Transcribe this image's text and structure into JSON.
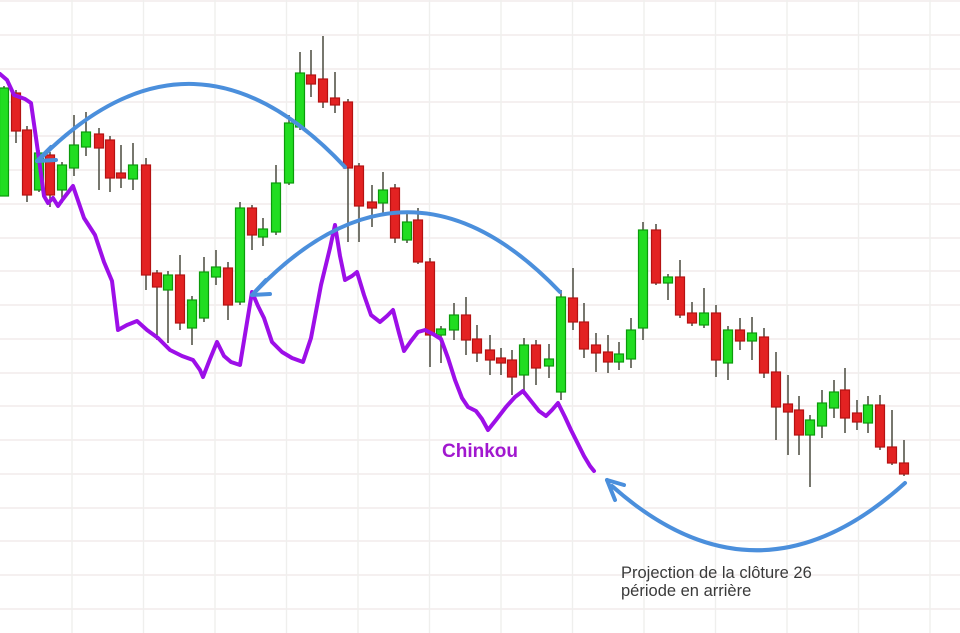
{
  "palette": {
    "background": "#ffffff",
    "grid_h": "#f2eceb",
    "grid_v": "#efefed",
    "up_fill": "#21dd21",
    "up_stroke": "#0b9b0b",
    "down_fill": "#e32222",
    "down_stroke": "#b51212",
    "wick": "#55554a",
    "chinkou_line": "#9d0fe8",
    "chinkou_text": "#a118cf",
    "arrow_blue": "#4b8fdc",
    "annotation_text": "#3a3a3a"
  },
  "labels": {
    "chinkou": "Chinkou",
    "projection_line1": "Projection de la clôture 26",
    "projection_line2": "période en arrière"
  },
  "chart_data": {
    "type": "candlestick",
    "title": "",
    "xlabel": "",
    "ylabel": "",
    "has_axis_labels": false,
    "note": "cropped candlestick chart with Ichimoku Chinkou span; values are screen-pixel estimates (down = lower price), no numeric axis ticks visible",
    "grid": {
      "vertical_x": [
        72,
        143.5,
        215,
        286.5,
        358,
        429.5,
        501,
        572.5,
        644,
        715.5,
        787,
        858.5,
        930
      ],
      "horizontal_y": [
        1,
        35,
        69,
        102,
        136,
        170,
        204,
        238,
        271,
        305,
        339,
        373,
        406,
        440,
        474,
        508,
        541,
        575,
        609
      ]
    },
    "candle_columns": [
      "x_center",
      "wick_top",
      "body_top",
      "body_bottom",
      "wick_bottom",
      "direction(u=up,d=down)"
    ],
    "candles": [
      [
        4,
        86,
        88,
        196,
        196,
        "u"
      ],
      [
        16,
        90,
        93,
        131,
        143,
        "d"
      ],
      [
        27,
        126,
        130,
        195,
        202,
        "d"
      ],
      [
        39,
        150,
        153,
        190,
        192,
        "u"
      ],
      [
        50,
        152,
        155,
        195,
        207,
        "d"
      ],
      [
        62,
        162,
        165,
        190,
        203,
        "u"
      ],
      [
        74,
        115,
        145,
        168,
        176,
        "u"
      ],
      [
        86,
        112,
        132,
        147,
        156,
        "u"
      ],
      [
        99,
        128,
        134,
        148,
        190,
        "d"
      ],
      [
        110,
        136,
        140,
        178,
        192,
        "d"
      ],
      [
        121,
        145,
        173,
        178,
        188,
        "d"
      ],
      [
        133,
        143,
        165,
        179,
        190,
        "u"
      ],
      [
        146,
        158,
        165,
        275,
        290,
        "d"
      ],
      [
        157,
        270,
        273,
        287,
        340,
        "d"
      ],
      [
        168,
        271,
        275,
        290,
        343,
        "u"
      ],
      [
        180,
        255,
        275,
        323,
        330,
        "d"
      ],
      [
        192,
        296,
        300,
        328,
        345,
        "u"
      ],
      [
        204,
        257,
        272,
        318,
        322,
        "u"
      ],
      [
        216,
        250,
        267,
        277,
        285,
        "u"
      ],
      [
        228,
        262,
        268,
        305,
        320,
        "d"
      ],
      [
        240,
        202,
        208,
        302,
        305,
        "u"
      ],
      [
        252,
        205,
        208,
        235,
        250,
        "d"
      ],
      [
        263,
        218,
        229,
        237,
        246,
        "u"
      ],
      [
        276,
        165,
        183,
        232,
        235,
        "u"
      ],
      [
        289,
        115,
        123,
        183,
        185,
        "u"
      ],
      [
        300,
        52,
        73,
        127,
        130,
        "u"
      ],
      [
        311,
        50,
        75,
        84,
        97,
        "d"
      ],
      [
        323,
        36,
        79,
        102,
        108,
        "d"
      ],
      [
        335,
        72,
        98,
        105,
        113,
        "d"
      ],
      [
        348,
        99,
        102,
        168,
        242,
        "d"
      ],
      [
        359,
        163,
        166,
        206,
        242,
        "d"
      ],
      [
        372,
        185,
        202,
        208,
        227,
        "d"
      ],
      [
        383,
        172,
        190,
        203,
        215,
        "u"
      ],
      [
        395,
        184,
        188,
        238,
        243,
        "d"
      ],
      [
        407,
        213,
        222,
        240,
        243,
        "u"
      ],
      [
        418,
        208,
        220,
        262,
        264,
        "d"
      ],
      [
        430,
        258,
        262,
        335,
        367,
        "d"
      ],
      [
        441,
        326,
        329,
        335,
        363,
        "u"
      ],
      [
        454,
        303,
        315,
        330,
        340,
        "u"
      ],
      [
        466,
        297,
        315,
        340,
        355,
        "d"
      ],
      [
        477,
        325,
        339,
        353,
        362,
        "d"
      ],
      [
        490,
        335,
        350,
        360,
        375,
        "d"
      ],
      [
        501,
        348,
        358,
        363,
        375,
        "d"
      ],
      [
        512,
        350,
        360,
        377,
        395,
        "d"
      ],
      [
        524,
        338,
        345,
        375,
        395,
        "u"
      ],
      [
        536,
        340,
        345,
        368,
        385,
        "d"
      ],
      [
        549,
        344,
        359,
        366,
        378,
        "u"
      ],
      [
        561,
        290,
        297,
        392,
        400,
        "u"
      ],
      [
        573,
        268,
        298,
        322,
        330,
        "d"
      ],
      [
        584,
        303,
        322,
        349,
        358,
        "d"
      ],
      [
        596,
        333,
        345,
        353,
        372,
        "d"
      ],
      [
        608,
        335,
        352,
        362,
        373,
        "d"
      ],
      [
        619,
        342,
        354,
        362,
        370,
        "u"
      ],
      [
        631,
        318,
        330,
        359,
        368,
        "u"
      ],
      [
        643,
        222,
        230,
        328,
        340,
        "u"
      ],
      [
        656,
        224,
        230,
        283,
        285,
        "d"
      ],
      [
        668,
        274,
        277,
        283,
        300,
        "u"
      ],
      [
        680,
        260,
        277,
        315,
        318,
        "d"
      ],
      [
        692,
        302,
        313,
        323,
        326,
        "d"
      ],
      [
        704,
        288,
        313,
        325,
        328,
        "u"
      ],
      [
        716,
        305,
        313,
        360,
        377,
        "d"
      ],
      [
        728,
        326,
        330,
        363,
        380,
        "u"
      ],
      [
        740,
        318,
        330,
        341,
        350,
        "d"
      ],
      [
        752,
        317,
        333,
        341,
        360,
        "u"
      ],
      [
        764,
        328,
        337,
        373,
        378,
        "d"
      ],
      [
        776,
        352,
        372,
        407,
        440,
        "d"
      ],
      [
        788,
        375,
        404,
        412,
        455,
        "d"
      ],
      [
        799,
        396,
        410,
        435,
        455,
        "d"
      ],
      [
        810,
        415,
        420,
        435,
        487,
        "u"
      ],
      [
        822,
        390,
        403,
        426,
        438,
        "u"
      ],
      [
        834,
        380,
        392,
        408,
        418,
        "u"
      ],
      [
        845,
        368,
        390,
        418,
        433,
        "d"
      ],
      [
        857,
        400,
        413,
        422,
        430,
        "d"
      ],
      [
        868,
        396,
        405,
        423,
        433,
        "u"
      ],
      [
        880,
        395,
        405,
        447,
        450,
        "d"
      ],
      [
        892,
        410,
        447,
        463,
        465,
        "d"
      ],
      [
        904,
        440,
        463,
        474,
        476,
        "d"
      ]
    ],
    "chinkou_span_points": [
      [
        0,
        74
      ],
      [
        7,
        80
      ],
      [
        14,
        95
      ],
      [
        25,
        99
      ],
      [
        31,
        103
      ],
      [
        38,
        152
      ],
      [
        44,
        196
      ],
      [
        48,
        203
      ],
      [
        53,
        198
      ],
      [
        58,
        206
      ],
      [
        63,
        199
      ],
      [
        73,
        186
      ],
      [
        84,
        218
      ],
      [
        95,
        235
      ],
      [
        104,
        262
      ],
      [
        112,
        281
      ],
      [
        118,
        330
      ],
      [
        127,
        325
      ],
      [
        137,
        321
      ],
      [
        147,
        330
      ],
      [
        158,
        338
      ],
      [
        170,
        350
      ],
      [
        182,
        356
      ],
      [
        193,
        360
      ],
      [
        200,
        370
      ],
      [
        203,
        377
      ],
      [
        210,
        359
      ],
      [
        217,
        342
      ],
      [
        224,
        356
      ],
      [
        231,
        362
      ],
      [
        240,
        365
      ],
      [
        252,
        292
      ],
      [
        258,
        306
      ],
      [
        264,
        318
      ],
      [
        272,
        342
      ],
      [
        282,
        352
      ],
      [
        292,
        358
      ],
      [
        303,
        362
      ],
      [
        311,
        338
      ],
      [
        321,
        285
      ],
      [
        330,
        248
      ],
      [
        335,
        225
      ],
      [
        340,
        256
      ],
      [
        345,
        280
      ],
      [
        352,
        276
      ],
      [
        357,
        272
      ],
      [
        364,
        295
      ],
      [
        371,
        315
      ],
      [
        380,
        322
      ],
      [
        387,
        316
      ],
      [
        393,
        310
      ],
      [
        399,
        333
      ],
      [
        404,
        351
      ],
      [
        411,
        341
      ],
      [
        418,
        332
      ],
      [
        425,
        330
      ],
      [
        433,
        334
      ],
      [
        441,
        339
      ],
      [
        448,
        358
      ],
      [
        455,
        380
      ],
      [
        462,
        398
      ],
      [
        468,
        407
      ],
      [
        476,
        411
      ],
      [
        482,
        419
      ],
      [
        488,
        430
      ],
      [
        496,
        420
      ],
      [
        506,
        407
      ],
      [
        515,
        397
      ],
      [
        523,
        391
      ],
      [
        531,
        401
      ],
      [
        539,
        411
      ],
      [
        546,
        416
      ],
      [
        552,
        410
      ],
      [
        558,
        403
      ],
      [
        565,
        417
      ],
      [
        571,
        430
      ],
      [
        577,
        442
      ],
      [
        584,
        456
      ],
      [
        590,
        466
      ],
      [
        594,
        471
      ]
    ],
    "annotation_arrows": [
      {
        "name": "arc-left",
        "start": [
          42,
          157
        ],
        "control": [
          194,
          6
        ],
        "end": [
          345,
          167
        ],
        "head_tip": [
          37,
          161
        ],
        "head_wings": [
          [
            51,
            147
          ],
          [
            56,
            160
          ]
        ]
      },
      {
        "name": "arc-middle",
        "start": [
          256,
          291
        ],
        "control": [
          408,
          133
        ],
        "end": [
          560,
          292
        ],
        "head_tip": [
          252,
          295
        ],
        "head_wings": [
          [
            266,
            280
          ],
          [
            270,
            294
          ]
        ]
      },
      {
        "name": "arc-bottom",
        "start": [
          612,
          486
        ],
        "control": [
          758,
          616
        ],
        "end": [
          905,
          483
        ],
        "head_tip": [
          607,
          480
        ],
        "head_wings": [
          [
            624,
            485
          ],
          [
            615,
            500
          ]
        ]
      }
    ]
  }
}
